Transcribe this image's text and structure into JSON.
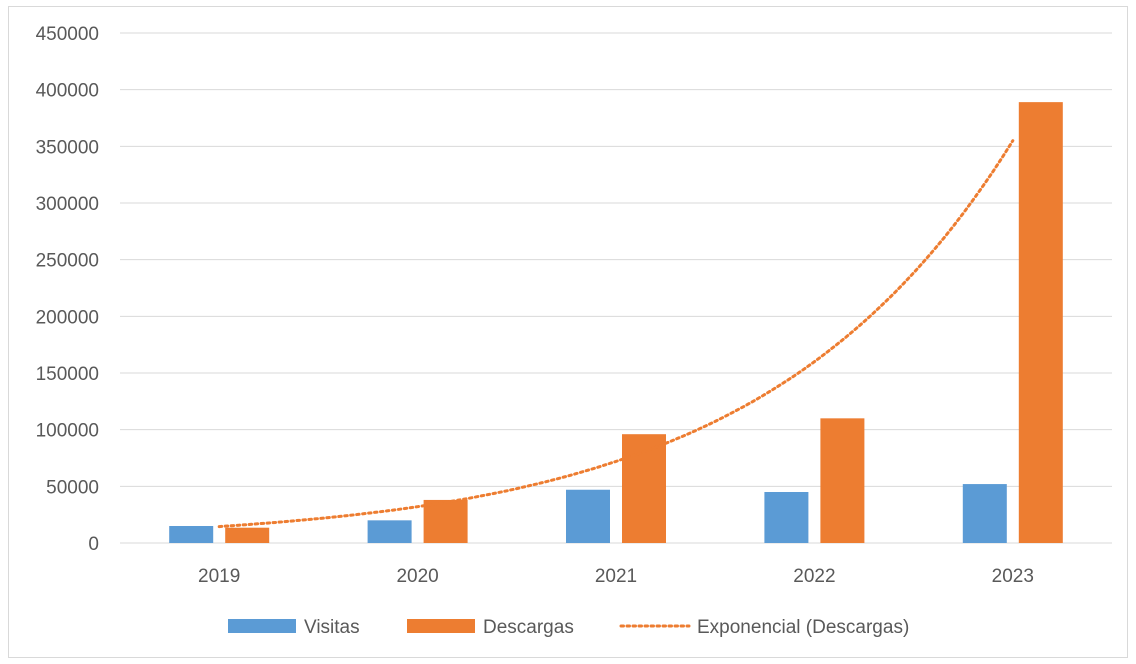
{
  "chart_data": {
    "type": "bar",
    "categories": [
      "2019",
      "2020",
      "2021",
      "2022",
      "2023"
    ],
    "series": [
      {
        "name": "Visitas",
        "values": [
          15000,
          20000,
          47000,
          45000,
          52000
        ],
        "color": "#5b9bd5"
      },
      {
        "name": "Descargas",
        "values": [
          13500,
          38000,
          96000,
          110000,
          389000
        ],
        "color": "#ed7d31"
      }
    ],
    "trendline": {
      "name": "Exponencial (Descargas)",
      "type": "exponential",
      "of_series": "Descargas",
      "values": [
        14500,
        32000,
        72000,
        160000,
        355000
      ],
      "style": "dotted",
      "color": "#ed7d31"
    },
    "ylim": [
      0,
      450000
    ],
    "yticks": [
      "0",
      "50000",
      "100000",
      "150000",
      "200000",
      "250000",
      "300000",
      "350000",
      "400000",
      "450000"
    ],
    "grid": true,
    "legend_position": "bottom",
    "title": "",
    "xlabel": "",
    "ylabel": ""
  }
}
